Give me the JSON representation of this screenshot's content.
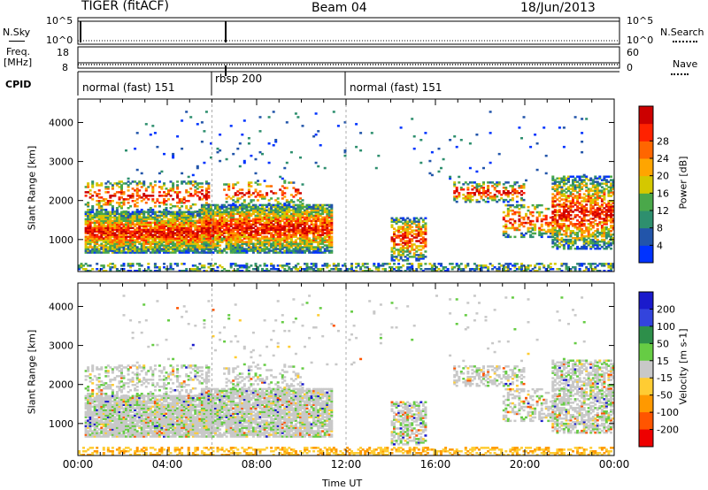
{
  "header": {
    "title": "TIGER (fitACF)",
    "beam": "Beam 04",
    "date": "18/Jun/2013"
  },
  "aux_panels": {
    "nsky_label": "N.Sky",
    "nsearch_label": "N.Search",
    "freq_label_1": "Freq.",
    "freq_label_2": "[MHz]",
    "nave_label": "Nave",
    "cpid_label": "CPID",
    "nsky_ticks": [
      "10^5",
      "10^0"
    ],
    "nsearch_ticks": [
      "10^5",
      "10^0"
    ],
    "freq_ticks": [
      "8",
      "18"
    ],
    "nave_ticks": [
      "0",
      "60"
    ]
  },
  "cpid_segments": [
    {
      "label": "normal (fast) 151",
      "start_hr": 0,
      "end_hr": 6.0
    },
    {
      "label": "rbsp 200",
      "start_hr": 6.0,
      "end_hr": 12.0
    },
    {
      "label": "normal (fast) 151",
      "start_hr": 12.0,
      "end_hr": 24.0
    }
  ],
  "x_axis": {
    "label": "Time UT",
    "ticks": [
      "00:00",
      "04:00",
      "08:00",
      "12:00",
      "16:00",
      "20:00",
      "00:00"
    ]
  },
  "chart_data": [
    {
      "type": "heatmap",
      "quantity": "power",
      "xlabel": "Time UT",
      "ylabel": "Slant Range [km]",
      "xlim": [
        0,
        24
      ],
      "ylim": [
        180,
        4600
      ],
      "y_ticks": [
        "1000",
        "2000",
        "3000",
        "4000"
      ],
      "colorbar": {
        "label": "Power [dB]",
        "ticks": [
          "4",
          "8",
          "12",
          "16",
          "20",
          "24",
          "28"
        ],
        "colors": [
          "#0033ff",
          "#2255aa",
          "#2e8f6e",
          "#4aa84a",
          "#d4c800",
          "#ffa500",
          "#ff6600",
          "#ff2200",
          "#cc0000"
        ]
      }
    },
    {
      "type": "heatmap",
      "quantity": "velocity",
      "xlabel": "Time UT",
      "ylabel": "Slant Range [km]",
      "xlim": [
        0,
        24
      ],
      "ylim": [
        180,
        4600
      ],
      "y_ticks": [
        "1000",
        "2000",
        "3000",
        "4000"
      ],
      "colorbar": {
        "label": "Velocity [m s-1]",
        "ticks": [
          "200",
          "100",
          "50",
          "15",
          "-15",
          "-50",
          "-100",
          "-200"
        ],
        "colors": [
          "#1a1acc",
          "#3344dd",
          "#2d8f4a",
          "#66cc44",
          "#c8c8c8",
          "#ffcc33",
          "#ff9900",
          "#ff5500",
          "#ee0000"
        ]
      }
    }
  ]
}
